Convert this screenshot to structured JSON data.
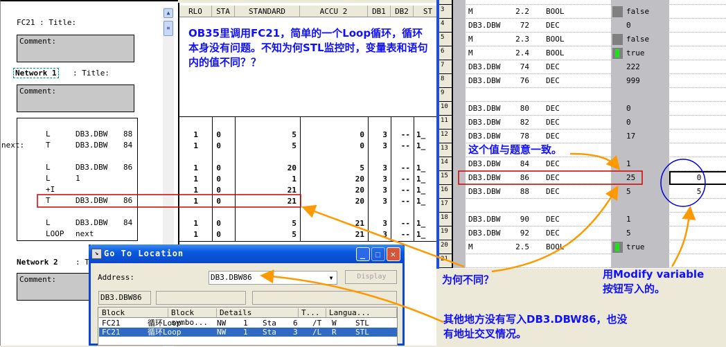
{
  "editor": {
    "block_title": "FC21 : Title:",
    "comment_label": "Comment:",
    "network1_label": "Network 1",
    "network1_title": ": Title:",
    "network2_label": "Network 2",
    "network2_title": ": Title:",
    "scroll_up": "▲",
    "scroll_thumb": "≡",
    "lines": [
      {
        "label": "",
        "op": "L",
        "operand": "DB3.DBW",
        "num": "88"
      },
      {
        "label": "next:",
        "op": "T",
        "operand": "DB3.DBW",
        "num": "84"
      },
      {
        "label": "",
        "op": "L",
        "operand": "DB3.DBW",
        "num": "86"
      },
      {
        "label": "",
        "op": "L",
        "operand": "1",
        "num": ""
      },
      {
        "label": "",
        "op": "+I",
        "operand": "",
        "num": ""
      },
      {
        "label": "",
        "op": "T",
        "operand": "DB3.DBW",
        "num": "86"
      },
      {
        "label": "",
        "op": "L",
        "operand": "DB3.DBW",
        "num": "84"
      },
      {
        "label": "",
        "op": "LOOP",
        "operand": "next",
        "num": ""
      }
    ]
  },
  "status_grid": {
    "headers": [
      "RLO",
      "STA",
      "STANDARD",
      "ACCU 2",
      "DB1",
      "DB2",
      "ST"
    ],
    "rows": [
      [
        "1",
        "0",
        "5",
        "0",
        "3",
        "--",
        "1_"
      ],
      [
        "1",
        "0",
        "5",
        "0",
        "3",
        "--",
        "1_"
      ],
      [
        "1",
        "0",
        "20",
        "5",
        "3",
        "--",
        "1_"
      ],
      [
        "1",
        "0",
        "1",
        "20",
        "3",
        "--",
        "1_"
      ],
      [
        "1",
        "0",
        "21",
        "20",
        "3",
        "--",
        "1_"
      ],
      [
        "1",
        "0",
        "21",
        "20",
        "3",
        "--",
        "1_"
      ],
      [
        "1",
        "0",
        "5",
        "21",
        "3",
        "--",
        "1_"
      ],
      [
        "1",
        "0",
        "5",
        "21",
        "3",
        "--",
        "1_"
      ]
    ]
  },
  "var_table": {
    "rows": [
      {
        "n": "3",
        "addr": "M",
        "num": "2.2",
        "fmt": "BOOL",
        "val": "false",
        "led": "gray",
        "mod": ""
      },
      {
        "n": "4",
        "addr": "DB3.DBW",
        "num": "72",
        "fmt": "DEC",
        "val": "0",
        "led": "",
        "mod": ""
      },
      {
        "n": "5",
        "addr": "M",
        "num": "2.3",
        "fmt": "BOOL",
        "val": "false",
        "led": "gray",
        "mod": ""
      },
      {
        "n": "6",
        "addr": "M",
        "num": "2.4",
        "fmt": "BOOL",
        "val": "true",
        "led": "green",
        "mod": ""
      },
      {
        "n": "7",
        "addr": "DB3.DBW",
        "num": "74",
        "fmt": "DEC",
        "val": "222",
        "led": "",
        "mod": ""
      },
      {
        "n": "8",
        "addr": "DB3.DBW",
        "num": "76",
        "fmt": "DEC",
        "val": "999",
        "led": "",
        "mod": ""
      },
      {
        "n": "9",
        "addr": "",
        "num": "",
        "fmt": "",
        "val": "",
        "led": "",
        "mod": ""
      },
      {
        "n": "10",
        "addr": "DB3.DBW",
        "num": "80",
        "fmt": "DEC",
        "val": "0",
        "led": "",
        "mod": ""
      },
      {
        "n": "11",
        "addr": "DB3.DBW",
        "num": "82",
        "fmt": "DEC",
        "val": "0",
        "led": "",
        "mod": ""
      },
      {
        "n": "12",
        "addr": "DB3.DBW",
        "num": "78",
        "fmt": "DEC",
        "val": "17",
        "led": "",
        "mod": ""
      },
      {
        "n": "13",
        "addr": "",
        "num": "",
        "fmt": "",
        "val": "",
        "led": "",
        "mod": ""
      },
      {
        "n": "14",
        "addr": "DB3.DBW",
        "num": "84",
        "fmt": "DEC",
        "val": "1",
        "led": "",
        "mod": ""
      },
      {
        "n": "15",
        "addr": "DB3.DBW",
        "num": "86",
        "fmt": "DEC",
        "val": "25",
        "led": "",
        "mod": "0"
      },
      {
        "n": "16",
        "addr": "DB3.DBW",
        "num": "88",
        "fmt": "DEC",
        "val": "5",
        "led": "",
        "mod": "5"
      },
      {
        "n": "17",
        "addr": "",
        "num": "",
        "fmt": "",
        "val": "",
        "led": "",
        "mod": ""
      },
      {
        "n": "18",
        "addr": "DB3.DBW",
        "num": "90",
        "fmt": "DEC",
        "val": "1",
        "led": "",
        "mod": ""
      },
      {
        "n": "19",
        "addr": "DB3.DBW",
        "num": "92",
        "fmt": "DEC",
        "val": "5",
        "led": "",
        "mod": ""
      },
      {
        "n": "20",
        "addr": "M",
        "num": "2.5",
        "fmt": "BOOL",
        "val": "true",
        "led": "green",
        "mod": ""
      },
      {
        "n": "21",
        "addr": "",
        "num": "",
        "fmt": "",
        "val": "",
        "led": "",
        "mod": ""
      }
    ]
  },
  "dialog": {
    "title": "Go To Location",
    "address_label": "Address:",
    "address_value": "DB3.DBW86",
    "display_button": "Display",
    "info_field": "DB3.DBW86",
    "columns": [
      "Block",
      "Block symbo...",
      "Details",
      "T...",
      "Langua..."
    ],
    "rows": [
      {
        "block": "FC21",
        "symbol": "循环Loop",
        "nw": "NW",
        "nwn": "1",
        "sta": "Sta",
        "stan": "6",
        "instr": "/T",
        "t": "W",
        "lang": "STL",
        "selected": false
      },
      {
        "block": "FC21",
        "symbol": "循环Loop",
        "nw": "NW",
        "nwn": "1",
        "sta": "Sta",
        "stan": "3",
        "instr": "/L",
        "t": "R",
        "lang": "STL",
        "selected": true
      }
    ]
  },
  "annotations": {
    "main": "OB35里调用FC21，简单的一个Loop循环，循环本身没有问题。不知为何STL监控时，变量表和语句内的值不同？？",
    "consistent": "这个值与题意一致。",
    "why": "为何不同？",
    "modify": "用Modify variable按钮写入的。",
    "no_write": "其他地方没有写入DB3.DBW86，也没有地址交叉情况。"
  },
  "colors": {
    "annotation": "#1010ff",
    "arrow": "#ff9900",
    "highlight_box": "#cc0000",
    "circle": "#0000dd",
    "title_bar": "#0a5ae0",
    "selection": "#316ac5"
  }
}
